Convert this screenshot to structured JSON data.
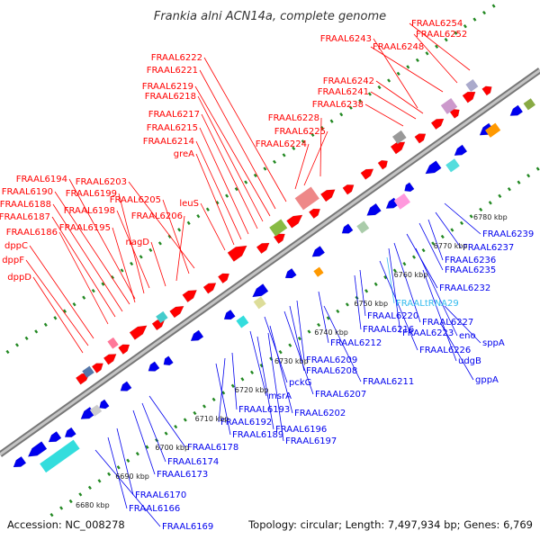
{
  "title": "Frankia alni ACN14a, complete genome",
  "footer": {
    "accession": "Accession: NC_008278",
    "topology": "Topology: circular; Length: 7,497,934 bp; Genes: 6,769"
  },
  "colors": {
    "forward": "#ff0000",
    "reverse": "#0000ee",
    "trna": "#33bbee",
    "backbone": "#999999",
    "ticks": "#228822"
  },
  "scale": {
    "unit": "kbp",
    "labels": [
      6680,
      6690,
      6700,
      6710,
      6720,
      6730,
      6740,
      6750,
      6760,
      6770,
      6780
    ]
  },
  "top_labels": [
    "FRAAL6254",
    "FRAAL6252",
    "FRAAL6248",
    "FRAAL6243",
    "FRAAL6242",
    "FRAAL6241",
    "FRAAL6238",
    "FRAAL6228",
    "FRAAL6225",
    "FRAAL6224",
    "FRAAL6222",
    "FRAAL6221",
    "FRAAL6219",
    "FRAAL6218",
    "FRAAL6217",
    "FRAAL6215",
    "FRAAL6214",
    "greA",
    "FRAAL6203",
    "FRAAL6205",
    "FRAAL6206",
    "leuS",
    "FRAAL6194",
    "FRAAL6190",
    "FRAAL6199",
    "FRAAL6198",
    "FRAAL6188",
    "FRAAL6187",
    "FRAAL6195",
    "FRAAL6186",
    "nagD",
    "dppC",
    "dppF",
    "dppD"
  ],
  "bottom_labels": [
    "FRAAL6239",
    "FRAAL6237",
    "FRAAL6236",
    "FRAAL6235",
    "FRAAL6232",
    "FRAALtRNA29",
    "FRAAL6227",
    "FRAAL6220",
    "FRAAL6216",
    "FRAAL6223",
    "eno",
    "sppA",
    "FRAAL6226",
    "udgB",
    "gppA",
    "FRAAL6212",
    "FRAAL6209",
    "FRAAL6208",
    "FRAAL6211",
    "pckG",
    "FRAAL6207",
    "msrA",
    "FRAAL6202",
    "FRAAL6193",
    "FRAAL6192",
    "FRAAL6196",
    "FRAAL6189",
    "FRAAL6197",
    "FRAAL6178",
    "FRAAL6174",
    "FRAAL6173",
    "FRAAL6170",
    "FRAAL6166",
    "FRAAL6169"
  ]
}
